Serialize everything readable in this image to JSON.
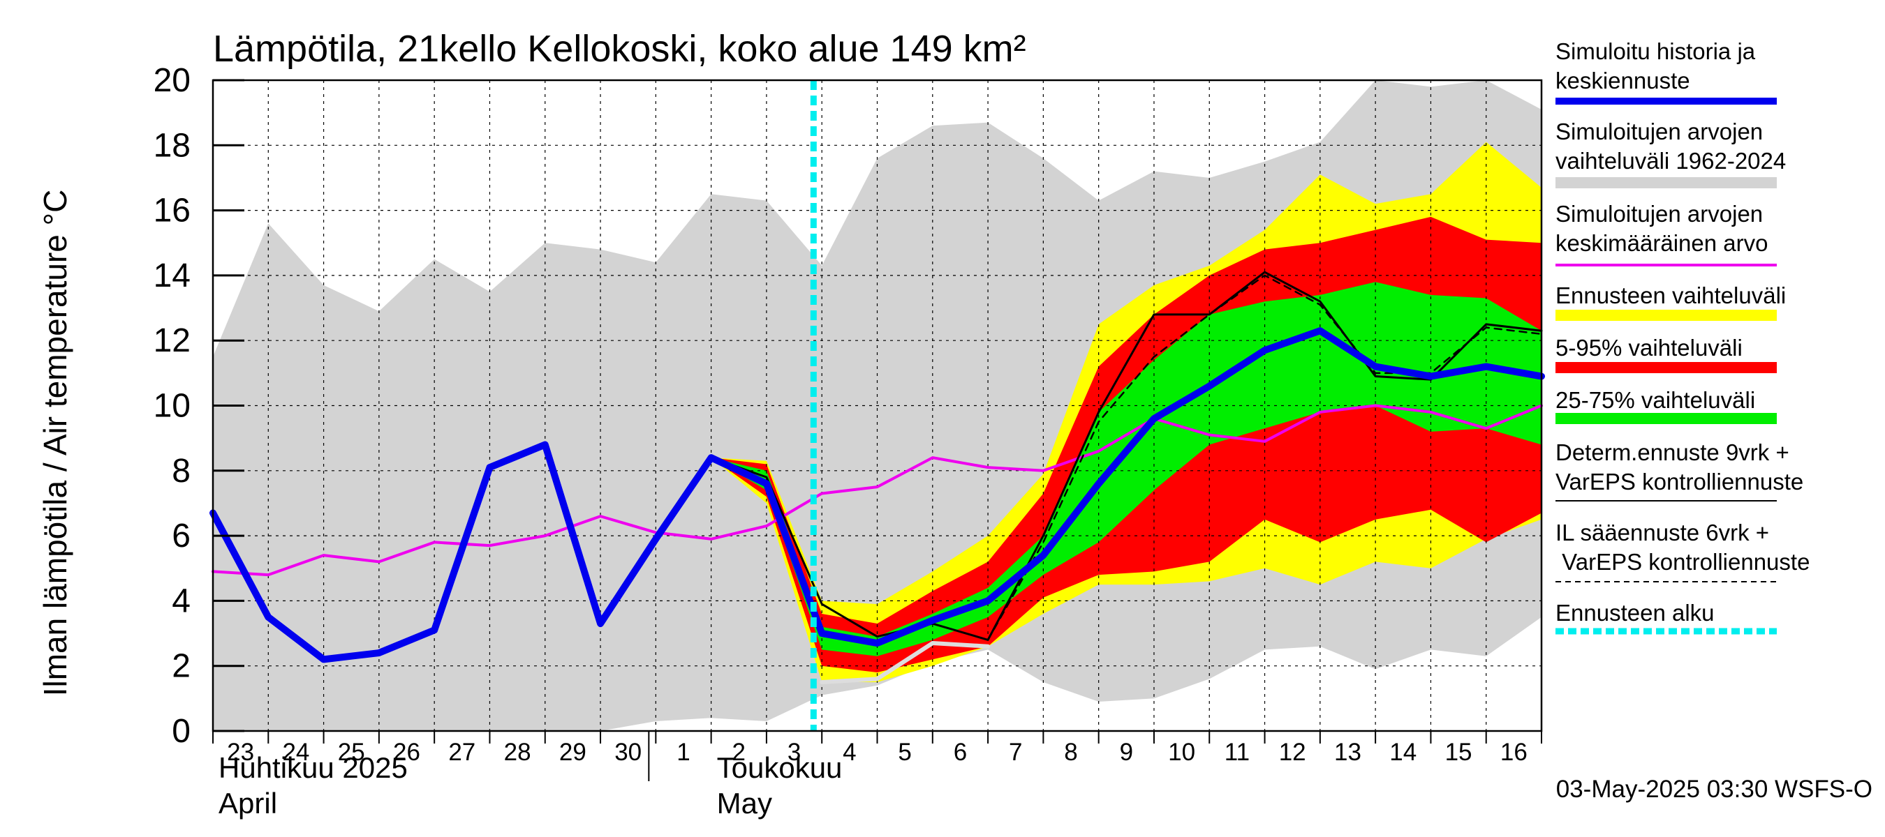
{
  "chart_data": {
    "type": "area",
    "title": "Lämpötila, 21kello Kellokoski, koko alue 149 km²",
    "ylabel": "Ilman lämpötila / Air temperature    °C",
    "ylim": [
      0,
      20
    ],
    "yticks": [
      0,
      2,
      4,
      6,
      8,
      10,
      12,
      14,
      16,
      18,
      20
    ],
    "day_labels": [
      "23",
      "24",
      "25",
      "26",
      "27",
      "28",
      "29",
      "30",
      "1",
      "2",
      "3",
      "4",
      "5",
      "6",
      "7",
      "8",
      "9",
      "10",
      "11",
      "12",
      "13",
      "14",
      "15",
      "16"
    ],
    "month_labels": [
      {
        "fi": "Huhtikuu  2025",
        "en": "April"
      },
      {
        "fi": "Toukokuu",
        "en": "May"
      }
    ],
    "forecast_start_day": 10.85,
    "footer": "03-May-2025 03:30 WSFS-O",
    "bands": {
      "history_range": {
        "x": [
          0,
          1,
          2,
          3,
          4,
          5,
          6,
          7,
          8,
          9,
          10,
          11,
          12,
          13,
          14,
          15,
          16,
          17,
          18,
          19,
          20,
          21,
          22,
          23,
          24
        ],
        "upper": [
          11.5,
          15.6,
          13.7,
          12.9,
          14.5,
          13.5,
          15.0,
          14.8,
          14.4,
          16.5,
          16.3,
          14.3,
          17.6,
          18.6,
          18.7,
          17.6,
          16.3,
          17.2,
          17.0,
          17.5,
          18.1,
          20.0,
          19.8,
          20.0,
          19.1
        ],
        "lower": [
          0,
          0,
          0,
          0,
          0,
          0,
          0,
          0,
          0.3,
          0.4,
          0.3,
          1.1,
          1.4,
          2.1,
          2.5,
          1.5,
          0.9,
          1.0,
          1.6,
          2.5,
          2.6,
          1.9,
          2.5,
          2.3,
          3.5
        ]
      },
      "forecast_full": {
        "x": [
          9,
          10,
          11,
          12,
          13,
          14,
          15,
          16,
          17,
          18,
          19,
          20,
          21,
          22,
          23,
          24
        ],
        "upper": [
          8.4,
          8.3,
          4.0,
          3.9,
          4.9,
          6.0,
          7.9,
          12.5,
          13.7,
          14.3,
          15.4,
          17.1,
          16.2,
          16.5,
          18.1,
          16.7
        ],
        "lower": [
          8.4,
          7.0,
          1.5,
          1.5,
          2.0,
          2.6,
          3.6,
          4.5,
          4.5,
          4.6,
          5.0,
          4.5,
          5.2,
          5.0,
          5.9,
          6.5
        ]
      },
      "p5_95": {
        "x": [
          9,
          10,
          11,
          12,
          13,
          14,
          15,
          16,
          17,
          18,
          19,
          20,
          21,
          22,
          23,
          24
        ],
        "upper": [
          8.4,
          8.2,
          3.6,
          3.3,
          4.3,
          5.2,
          7.3,
          11.2,
          12.8,
          14.0,
          14.8,
          15.0,
          15.4,
          15.8,
          15.1,
          15.0
        ],
        "lower": [
          8.4,
          7.2,
          2.0,
          1.8,
          2.2,
          2.6,
          4.1,
          4.8,
          4.9,
          5.2,
          6.5,
          5.8,
          6.5,
          6.8,
          5.8,
          6.7
        ]
      },
      "p25_75": {
        "x": [
          9,
          10,
          11,
          12,
          13,
          14,
          15,
          16,
          17,
          18,
          19,
          20,
          21,
          22,
          23,
          24
        ],
        "upper": [
          8.4,
          8.0,
          3.2,
          2.9,
          3.6,
          4.4,
          6.0,
          9.8,
          11.4,
          12.8,
          13.2,
          13.4,
          13.8,
          13.4,
          13.3,
          12.3
        ],
        "lower": [
          8.4,
          7.4,
          2.5,
          2.3,
          2.8,
          3.5,
          4.8,
          5.8,
          7.4,
          8.8,
          9.3,
          9.8,
          10.0,
          9.2,
          9.3,
          8.8
        ]
      }
    },
    "series": [
      {
        "name": "Simuloitu historia ja keskiennuste",
        "color": "#0000ee",
        "x": [
          0,
          1,
          2,
          3,
          4,
          5,
          6,
          7,
          8,
          9,
          10,
          11,
          12,
          13,
          14,
          15,
          16,
          17,
          18,
          19,
          20,
          21,
          22,
          23,
          24
        ],
        "values": [
          6.7,
          3.5,
          2.2,
          2.4,
          3.1,
          8.1,
          8.8,
          3.3,
          5.9,
          8.4,
          7.6,
          3.0,
          2.7,
          3.4,
          4.0,
          5.4,
          7.6,
          9.6,
          10.6,
          11.7,
          12.3,
          11.2,
          10.9,
          11.2,
          10.9
        ]
      },
      {
        "name": "Simuloitujen arvojen keskimääräinen arvo",
        "color": "#ee00ee",
        "x": [
          0,
          1,
          2,
          3,
          4,
          5,
          6,
          7,
          8,
          9,
          10,
          11,
          12,
          13,
          14,
          15,
          16,
          17,
          18,
          19,
          20,
          21,
          22,
          23,
          24
        ],
        "values": [
          4.9,
          4.8,
          5.4,
          5.2,
          5.8,
          5.7,
          6.0,
          6.6,
          6.1,
          5.9,
          6.3,
          7.3,
          7.5,
          8.4,
          8.1,
          8.0,
          8.6,
          9.6,
          9.1,
          8.9,
          9.8,
          10.0,
          9.8,
          9.3,
          10.0
        ]
      },
      {
        "name": "Determ.ennuste 9vrk + VarEPS kontrolliennuste",
        "color": "#000000",
        "x": [
          9,
          10,
          11,
          12,
          13,
          14,
          15,
          16,
          17,
          18,
          19,
          20,
          21,
          22,
          23,
          24
        ],
        "values": [
          8.4,
          7.8,
          3.9,
          2.9,
          3.3,
          2.8,
          6.0,
          9.8,
          12.8,
          12.8,
          14.1,
          13.2,
          10.9,
          10.8,
          12.5,
          12.3
        ]
      },
      {
        "name": "IL sääennuste 6vrk + VarEPS kontrolliennuste",
        "color": "#000000",
        "dashed": true,
        "x": [
          14,
          15,
          16,
          17,
          18,
          19,
          20,
          21,
          22,
          23,
          24
        ],
        "values": [
          2.8,
          5.8,
          9.5,
          11.5,
          12.8,
          14.0,
          13.1,
          11.0,
          11.0,
          12.4,
          12.2
        ]
      },
      {
        "name": "history-low",
        "color": "#dddddd",
        "x": [
          11,
          12,
          13,
          14
        ],
        "values": [
          1.5,
          1.6,
          2.7,
          2.6
        ]
      }
    ],
    "legend": [
      {
        "label": "Simuloitu historia ja keskiennuste",
        "color": "#0000ee",
        "style": "thick"
      },
      {
        "label": "Simuloitujen arvojen vaihteluväli 1962-2024",
        "color": "#d3d3d3",
        "style": "thick"
      },
      {
        "label": "Simuloitujen arvojen keskimääräinen arvo",
        "color": "#ee00ee",
        "style": "thin"
      },
      {
        "label": "Ennusteen vaihteluväli",
        "color": "#ffff00",
        "style": "thick"
      },
      {
        "label": "5-95% vaihteluväli",
        "color": "#ff0000",
        "style": "thick"
      },
      {
        "label": "25-75% vaihteluväli",
        "color": "#00ee00",
        "style": "thick"
      },
      {
        "label": "Determ.ennuste 9vrk + VarEPS kontrolliennuste",
        "color": "#000000",
        "style": "solid"
      },
      {
        "label": "IL sääennuste 6vrk  +   VarEPS kontrolliennuste",
        "color": "#000000",
        "style": "dashed"
      },
      {
        "label": "Ennusteen alku",
        "color": "#00eeee",
        "style": "dotted"
      }
    ]
  }
}
